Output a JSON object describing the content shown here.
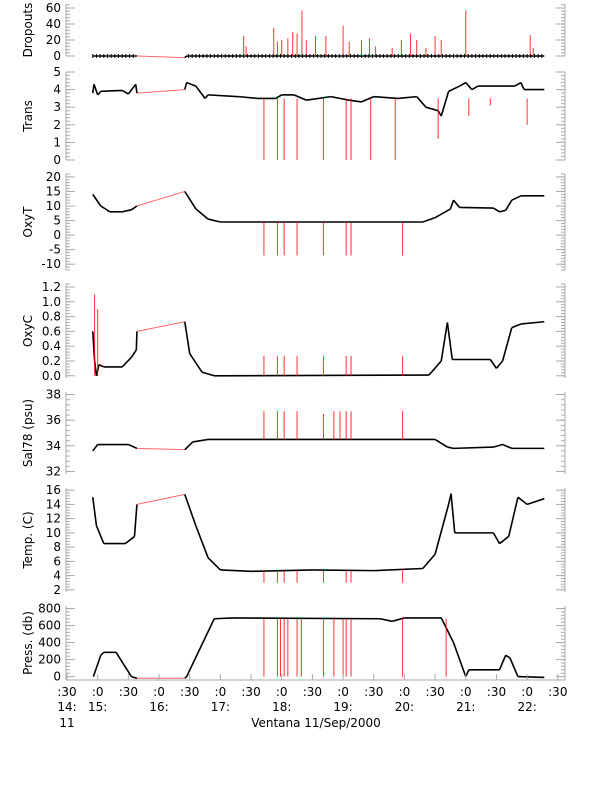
{
  "chart_data": {
    "type": "line",
    "title": "",
    "xlabel": "Ventana 11/Sep/2000",
    "xlim": [
      14.5,
      22.5
    ],
    "x_ticks": [
      {
        "t": 14.5,
        "minute": ":30",
        "hour": "14:"
      },
      {
        "t": 15.0,
        "minute": ":0",
        "hour": "15:"
      },
      {
        "t": 15.5,
        "minute": ":30",
        "hour": ""
      },
      {
        "t": 16.0,
        "minute": ":0",
        "hour": "16:"
      },
      {
        "t": 16.5,
        "minute": ":30",
        "hour": ""
      },
      {
        "t": 17.0,
        "minute": ":0",
        "hour": "17:"
      },
      {
        "t": 17.5,
        "minute": ":30",
        "hour": ""
      },
      {
        "t": 18.0,
        "minute": ":0",
        "hour": "18:"
      },
      {
        "t": 18.5,
        "minute": ":30",
        "hour": ""
      },
      {
        "t": 19.0,
        "minute": ":0",
        "hour": "19:"
      },
      {
        "t": 19.5,
        "minute": ":30",
        "hour": ""
      },
      {
        "t": 20.0,
        "minute": ":0",
        "hour": "20:"
      },
      {
        "t": 20.5,
        "minute": ":30",
        "hour": ""
      },
      {
        "t": 21.0,
        "minute": ":0",
        "hour": "21:"
      },
      {
        "t": 21.5,
        "minute": ":30",
        "hour": ""
      },
      {
        "t": 22.0,
        "minute": ":0",
        "hour": "22:"
      },
      {
        "t": 22.5,
        "minute": ":30",
        "hour": ""
      }
    ],
    "day_label": "11",
    "colors": {
      "data": "#000000",
      "flagged": "#ff0000",
      "axis": "#aaaaaa"
    },
    "gap": [
      15.64,
      16.42
    ],
    "panels": [
      {
        "ylabel": "Dropouts",
        "ylim": [
          0,
          65
        ],
        "yticks": [
          0,
          20,
          40,
          60
        ],
        "series": [
          [
            14.92,
            0
          ],
          [
            15.64,
            0
          ],
          [
            16.42,
            -2
          ],
          [
            16.45,
            0
          ],
          [
            22.28,
            0
          ]
        ],
        "spikes": [
          [
            17.38,
            25
          ],
          [
            17.42,
            12
          ],
          [
            17.87,
            35
          ],
          [
            17.93,
            18
          ],
          [
            18.0,
            20
          ],
          [
            18.1,
            22
          ],
          [
            18.18,
            30
          ],
          [
            18.25,
            28
          ],
          [
            18.33,
            57
          ],
          [
            18.4,
            20
          ],
          [
            18.55,
            25
          ],
          [
            18.72,
            25
          ],
          [
            19.0,
            38
          ],
          [
            19.1,
            18
          ],
          [
            19.3,
            20
          ],
          [
            19.43,
            22
          ],
          [
            19.53,
            12
          ],
          [
            19.8,
            10
          ],
          [
            19.95,
            20
          ],
          [
            20.1,
            28
          ],
          [
            20.2,
            20
          ],
          [
            20.35,
            10
          ],
          [
            20.5,
            25
          ],
          [
            20.6,
            20
          ],
          [
            21.0,
            57
          ],
          [
            22.05,
            26
          ],
          [
            22.1,
            10
          ]
        ],
        "spike_base": 0
      },
      {
        "ylabel": "Trans",
        "ylim": [
          0,
          5
        ],
        "yticks": [
          0,
          1,
          2,
          3,
          4,
          5
        ],
        "series": [
          [
            14.92,
            3.8
          ],
          [
            14.94,
            4.3
          ],
          [
            15.0,
            3.7
          ],
          [
            15.05,
            3.9
          ],
          [
            15.4,
            3.95
          ],
          [
            15.5,
            3.75
          ],
          [
            15.62,
            4.3
          ],
          [
            15.64,
            3.8
          ],
          [
            16.42,
            4.0
          ],
          [
            16.45,
            4.4
          ],
          [
            16.6,
            4.2
          ],
          [
            16.75,
            3.5
          ],
          [
            16.8,
            3.7
          ],
          [
            17.3,
            3.6
          ],
          [
            17.6,
            3.5
          ],
          [
            17.9,
            3.5
          ],
          [
            18.0,
            3.7
          ],
          [
            18.2,
            3.7
          ],
          [
            18.4,
            3.4
          ],
          [
            18.8,
            3.6
          ],
          [
            19.1,
            3.4
          ],
          [
            19.3,
            3.3
          ],
          [
            19.5,
            3.6
          ],
          [
            19.9,
            3.5
          ],
          [
            20.2,
            3.6
          ],
          [
            20.35,
            3.0
          ],
          [
            20.55,
            2.8
          ],
          [
            20.6,
            2.5
          ],
          [
            20.72,
            3.9
          ],
          [
            20.9,
            4.2
          ],
          [
            21.0,
            4.4
          ],
          [
            21.1,
            4.0
          ],
          [
            21.2,
            4.2
          ],
          [
            21.5,
            4.2
          ],
          [
            21.8,
            4.2
          ],
          [
            21.9,
            4.4
          ],
          [
            21.95,
            4.0
          ],
          [
            22.28,
            4.0
          ]
        ],
        "spikes": [
          [
            17.71,
            0
          ],
          [
            17.93,
            0
          ],
          [
            18.04,
            0
          ],
          [
            18.25,
            0
          ],
          [
            18.68,
            0
          ],
          [
            19.05,
            0
          ],
          [
            19.13,
            0
          ],
          [
            19.45,
            0
          ],
          [
            19.85,
            0
          ],
          [
            20.55,
            1.2
          ],
          [
            21.05,
            2.5
          ],
          [
            21.4,
            3.1
          ],
          [
            22.0,
            2.0
          ]
        ],
        "spike_base": 3.5
      },
      {
        "ylabel": "OxyT",
        "ylim": [
          -12,
          21
        ],
        "yticks": [
          -10,
          -5,
          0,
          5,
          10,
          15,
          20
        ],
        "series": [
          [
            14.92,
            14
          ],
          [
            15.05,
            10
          ],
          [
            15.2,
            8
          ],
          [
            15.4,
            8
          ],
          [
            15.55,
            8.7
          ],
          [
            15.64,
            10
          ],
          [
            16.42,
            15
          ],
          [
            16.6,
            9
          ],
          [
            16.8,
            5.5
          ],
          [
            17.0,
            4.5
          ],
          [
            20.3,
            4.5
          ],
          [
            20.5,
            6
          ],
          [
            20.75,
            9
          ],
          [
            20.8,
            12
          ],
          [
            20.9,
            9.5
          ],
          [
            21.45,
            9.3
          ],
          [
            21.55,
            8
          ],
          [
            21.65,
            8.5
          ],
          [
            21.75,
            12
          ],
          [
            21.9,
            13.5
          ],
          [
            22.28,
            13.5
          ]
        ],
        "spikes": [
          [
            17.71,
            -7
          ],
          [
            17.93,
            -7
          ],
          [
            18.04,
            -7
          ],
          [
            18.25,
            -7
          ],
          [
            18.68,
            -7
          ],
          [
            19.05,
            -7
          ],
          [
            19.13,
            -7
          ],
          [
            19.97,
            -7
          ]
        ],
        "spike_base": 4.5
      },
      {
        "ylabel": "OxyC",
        "ylim": [
          -0.03,
          1.24
        ],
        "yticks": [
          0.0,
          0.2,
          0.4,
          0.6,
          0.8,
          1.0,
          1.2
        ],
        "ytick_fmt": 1,
        "series": [
          [
            14.92,
            0.6
          ],
          [
            14.95,
            0.2
          ],
          [
            14.98,
            0.0
          ],
          [
            15.02,
            0.15
          ],
          [
            15.1,
            0.12
          ],
          [
            15.4,
            0.12
          ],
          [
            15.55,
            0.25
          ],
          [
            15.63,
            0.35
          ],
          [
            15.64,
            0.6
          ],
          [
            16.42,
            0.73
          ],
          [
            16.5,
            0.3
          ],
          [
            16.7,
            0.05
          ],
          [
            16.9,
            0.0
          ],
          [
            20.4,
            0.01
          ],
          [
            20.6,
            0.2
          ],
          [
            20.7,
            0.72
          ],
          [
            20.78,
            0.22
          ],
          [
            21.4,
            0.22
          ],
          [
            21.5,
            0.1
          ],
          [
            21.6,
            0.2
          ],
          [
            21.75,
            0.65
          ],
          [
            21.9,
            0.7
          ],
          [
            22.28,
            0.73
          ]
        ],
        "spikes": [
          [
            14.95,
            1.1
          ],
          [
            15.0,
            0.9
          ],
          [
            17.71,
            0.27
          ],
          [
            17.93,
            0.27
          ],
          [
            18.04,
            0.27
          ],
          [
            18.25,
            0.27
          ],
          [
            18.68,
            0.27
          ],
          [
            19.05,
            0.27
          ],
          [
            19.13,
            0.27
          ],
          [
            19.97,
            0.27
          ]
        ],
        "spike_base": 0.0
      },
      {
        "ylabel": "Sal78 (psu)",
        "ylim": [
          31.8,
          38.2
        ],
        "yticks": [
          32,
          34,
          36,
          38
        ],
        "series": [
          [
            14.92,
            33.6
          ],
          [
            15.0,
            34.1
          ],
          [
            15.5,
            34.1
          ],
          [
            15.64,
            33.8
          ],
          [
            16.42,
            33.7
          ],
          [
            16.55,
            34.3
          ],
          [
            16.8,
            34.5
          ],
          [
            20.5,
            34.5
          ],
          [
            20.7,
            33.9
          ],
          [
            20.8,
            33.8
          ],
          [
            21.45,
            33.9
          ],
          [
            21.6,
            34.1
          ],
          [
            21.75,
            33.8
          ],
          [
            22.28,
            33.8
          ]
        ],
        "spikes": [
          [
            17.71,
            36.7
          ],
          [
            17.93,
            36.7
          ],
          [
            18.04,
            36.7
          ],
          [
            18.25,
            36.7
          ],
          [
            18.68,
            36.5
          ],
          [
            18.85,
            36.7
          ],
          [
            18.95,
            36.7
          ],
          [
            19.05,
            36.7
          ],
          [
            19.13,
            36.7
          ],
          [
            19.97,
            36.7
          ]
        ],
        "spike_base": 34.5
      },
      {
        "ylabel": "Temp. (C)",
        "ylim": [
          1.7,
          16.3
        ],
        "yticks": [
          2,
          4,
          6,
          8,
          10,
          12,
          14,
          16
        ],
        "series": [
          [
            14.92,
            15
          ],
          [
            14.98,
            11
          ],
          [
            15.1,
            8.5
          ],
          [
            15.45,
            8.5
          ],
          [
            15.6,
            9.5
          ],
          [
            15.64,
            14
          ],
          [
            16.42,
            15.4
          ],
          [
            16.6,
            11
          ],
          [
            16.8,
            6.5
          ],
          [
            17.0,
            4.8
          ],
          [
            17.5,
            4.6
          ],
          [
            18.5,
            4.8
          ],
          [
            19.5,
            4.7
          ],
          [
            20.3,
            5
          ],
          [
            20.5,
            7
          ],
          [
            20.72,
            14
          ],
          [
            20.76,
            15.5
          ],
          [
            20.82,
            10
          ],
          [
            21.45,
            10
          ],
          [
            21.55,
            8.5
          ],
          [
            21.7,
            9.5
          ],
          [
            21.85,
            15
          ],
          [
            22.0,
            14
          ],
          [
            22.28,
            14.8
          ]
        ],
        "spikes": [
          [
            17.71,
            3
          ],
          [
            17.93,
            3
          ],
          [
            18.04,
            3
          ],
          [
            18.25,
            3
          ],
          [
            18.68,
            3
          ],
          [
            19.05,
            3
          ],
          [
            19.13,
            3
          ],
          [
            19.97,
            3
          ]
        ],
        "spike_base": 4.7
      },
      {
        "ylabel": "Press. (db)",
        "ylim": [
          -40,
          830
        ],
        "yticks": [
          0,
          200,
          400,
          600,
          800
        ],
        "series": [
          [
            14.93,
            0
          ],
          [
            15.05,
            250
          ],
          [
            15.1,
            285
          ],
          [
            15.3,
            285
          ],
          [
            15.55,
            0
          ],
          [
            15.64,
            -20
          ],
          [
            16.42,
            -20
          ],
          [
            16.45,
            0
          ],
          [
            16.9,
            680
          ],
          [
            17.2,
            690
          ],
          [
            19.6,
            680
          ],
          [
            19.8,
            650
          ],
          [
            20.0,
            690
          ],
          [
            20.6,
            690
          ],
          [
            20.8,
            400
          ],
          [
            21.0,
            0
          ],
          [
            21.05,
            80
          ],
          [
            21.55,
            80
          ],
          [
            21.65,
            250
          ],
          [
            21.72,
            220
          ],
          [
            21.85,
            0
          ],
          [
            22.28,
            -10
          ]
        ],
        "spikes": [
          [
            17.71,
            0
          ],
          [
            17.93,
            0
          ],
          [
            17.98,
            0
          ],
          [
            18.04,
            0
          ],
          [
            18.1,
            0
          ],
          [
            18.25,
            0
          ],
          [
            18.32,
            0
          ],
          [
            18.68,
            0
          ],
          [
            18.85,
            0
          ],
          [
            19.0,
            0
          ],
          [
            19.05,
            0
          ],
          [
            19.13,
            0
          ],
          [
            19.97,
            0
          ],
          [
            20.68,
            0
          ]
        ],
        "spike_base": 680
      }
    ]
  }
}
